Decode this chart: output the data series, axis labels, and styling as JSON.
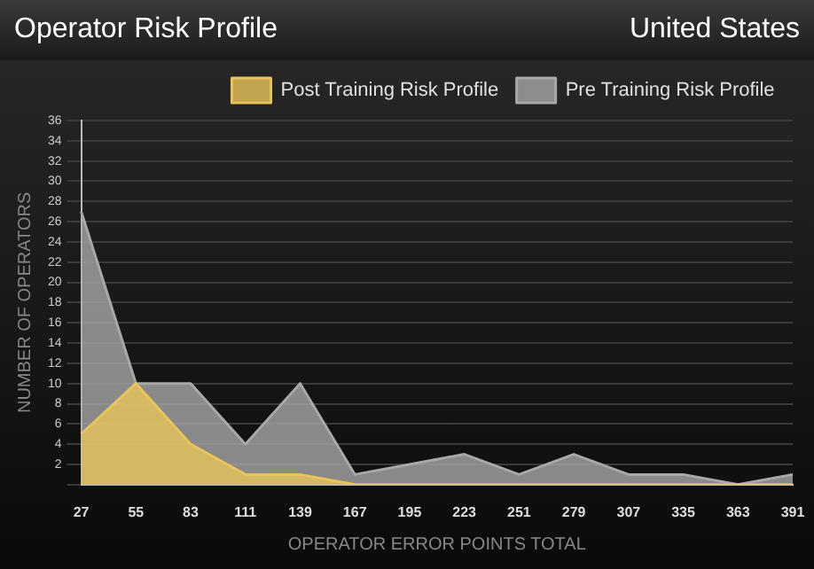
{
  "chart_data": {
    "type": "area",
    "title": "Operator Risk Profile",
    "subtitle": "United States",
    "xlabel": "OPERATOR ERROR POINTS TOTAL",
    "ylabel": "NUMBER OF OPERATORS",
    "categories": [
      "27",
      "55",
      "83",
      "111",
      "139",
      "167",
      "195",
      "223",
      "251",
      "279",
      "307",
      "335",
      "363",
      "391"
    ],
    "series": [
      {
        "name": "Pre Training Risk Profile",
        "color": "#a8a8a8",
        "values": [
          27,
          10,
          10,
          4,
          10,
          1,
          2,
          3,
          1,
          3,
          1,
          1,
          0,
          1
        ]
      },
      {
        "name": "Post Training Risk Profile",
        "color": "#e8c45a",
        "values": [
          5,
          10,
          4,
          1,
          1,
          0,
          0,
          0,
          0,
          0,
          0,
          0,
          0,
          0
        ]
      }
    ],
    "ylim": [
      0,
      36
    ],
    "yticks": [
      {
        "value": 0,
        "label": null
      },
      2,
      4,
      6,
      8,
      10,
      12,
      14,
      16,
      18,
      20,
      22,
      24,
      26,
      28,
      30,
      32,
      34,
      36
    ],
    "grid": "y",
    "legend": "top right"
  }
}
